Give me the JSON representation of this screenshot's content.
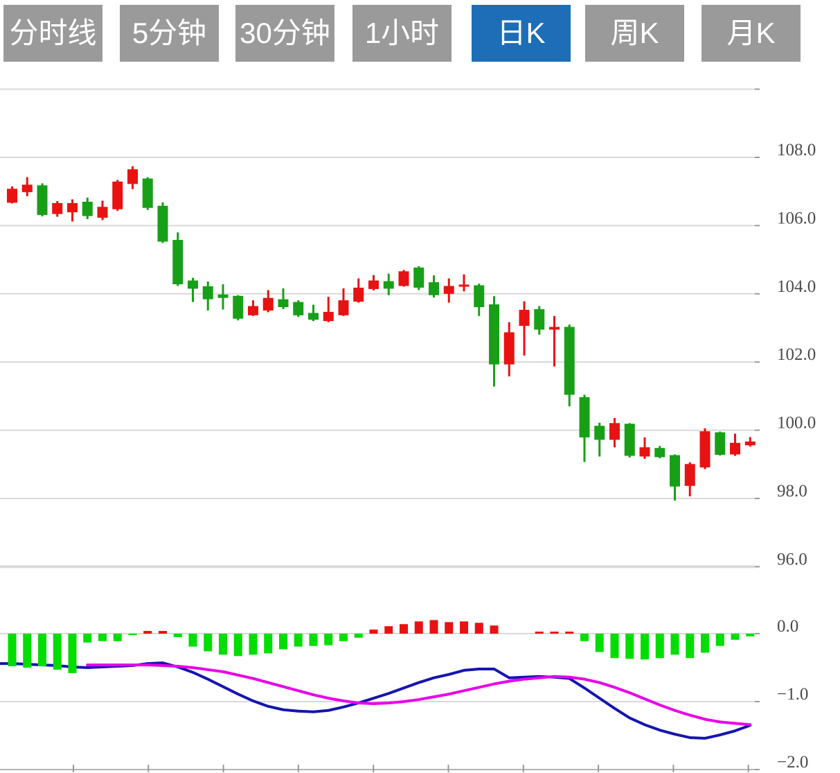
{
  "toolbar": {
    "buttons": [
      {
        "label": "分时线",
        "active": false
      },
      {
        "label": "5分钟",
        "active": false
      },
      {
        "label": "30分钟",
        "active": false
      },
      {
        "label": "1小时",
        "active": false
      },
      {
        "label": "日K",
        "active": true
      },
      {
        "label": "周K",
        "active": false
      },
      {
        "label": "月K",
        "active": false
      }
    ],
    "active_color": "#1d6eb7",
    "inactive_color": "#9a9a9a",
    "text_color": "#ffffff"
  },
  "chart_data": {
    "type": "candlestick",
    "title": "",
    "selected_timeframe": "日K",
    "legend": "none",
    "grid": true,
    "price_axis": {
      "position": "right",
      "tick_labels": [
        "108.0",
        "106.0",
        "104.0",
        "102.0",
        "100.0",
        "98.0",
        "96.0"
      ],
      "tick_values": [
        108,
        106,
        104,
        102,
        100,
        98,
        96
      ],
      "top_gridline_value": 110,
      "range": [
        96,
        110
      ]
    },
    "macd_axis": {
      "tick_labels": [
        "0.0",
        "−1.0",
        "−2.0"
      ],
      "tick_values": [
        0,
        -1,
        -2
      ],
      "range": [
        -2,
        0.25
      ]
    },
    "candles_ohlc_note": "each candle is [open, high, low, close]; red = up, green = down (CN convention)",
    "candles": [
      [
        106.67,
        107.15,
        106.65,
        107.08
      ],
      [
        106.98,
        107.42,
        106.86,
        107.2
      ],
      [
        107.18,
        107.24,
        106.27,
        106.31
      ],
      [
        106.34,
        106.72,
        106.26,
        106.66
      ],
      [
        106.39,
        106.77,
        106.12,
        106.66
      ],
      [
        106.7,
        106.82,
        106.19,
        106.28
      ],
      [
        106.23,
        106.73,
        106.16,
        106.55
      ],
      [
        106.48,
        107.34,
        106.43,
        107.29
      ],
      [
        107.22,
        107.74,
        107.07,
        107.65
      ],
      [
        107.38,
        107.42,
        106.46,
        106.52
      ],
      [
        106.58,
        106.68,
        105.49,
        105.53
      ],
      [
        105.58,
        105.8,
        104.23,
        104.28
      ],
      [
        104.39,
        104.47,
        103.76,
        104.15
      ],
      [
        104.22,
        104.36,
        103.51,
        103.84
      ],
      [
        103.98,
        104.28,
        103.54,
        103.88
      ],
      [
        103.94,
        103.96,
        103.22,
        103.27
      ],
      [
        103.37,
        103.81,
        103.35,
        103.64
      ],
      [
        103.51,
        104.11,
        103.46,
        103.88
      ],
      [
        103.84,
        104.16,
        103.55,
        103.61
      ],
      [
        103.76,
        103.81,
        103.32,
        103.37
      ],
      [
        103.44,
        103.68,
        103.2,
        103.24
      ],
      [
        103.2,
        103.91,
        103.17,
        103.47
      ],
      [
        103.37,
        104.16,
        103.35,
        103.81
      ],
      [
        103.77,
        104.45,
        103.74,
        104.18
      ],
      [
        104.14,
        104.55,
        104.1,
        104.39
      ],
      [
        104.37,
        104.59,
        103.96,
        104.15
      ],
      [
        104.23,
        104.7,
        104.21,
        104.66
      ],
      [
        104.77,
        104.81,
        104.11,
        104.18
      ],
      [
        104.34,
        104.54,
        103.89,
        103.96
      ],
      [
        104.0,
        104.45,
        103.74,
        104.23
      ],
      [
        104.21,
        104.57,
        104.07,
        104.27
      ],
      [
        104.25,
        104.3,
        103.35,
        103.61
      ],
      [
        103.69,
        103.93,
        101.28,
        101.93
      ],
      [
        101.93,
        103.17,
        101.58,
        102.87
      ],
      [
        103.06,
        103.78,
        102.19,
        103.53
      ],
      [
        103.55,
        103.64,
        102.8,
        102.95
      ],
      [
        102.95,
        103.35,
        101.87,
        103.03
      ],
      [
        103.03,
        103.1,
        100.7,
        101.04
      ],
      [
        100.97,
        101.04,
        99.07,
        99.79
      ],
      [
        100.13,
        100.22,
        99.23,
        99.72
      ],
      [
        99.72,
        100.36,
        99.5,
        100.21
      ],
      [
        100.19,
        100.21,
        99.2,
        99.25
      ],
      [
        99.23,
        99.79,
        99.16,
        99.5
      ],
      [
        99.48,
        99.54,
        99.18,
        99.21
      ],
      [
        99.27,
        99.29,
        97.94,
        98.35
      ],
      [
        98.37,
        99.06,
        98.06,
        99.01
      ],
      [
        98.91,
        100.06,
        98.86,
        99.97
      ],
      [
        99.94,
        99.96,
        99.26,
        99.28
      ],
      [
        99.29,
        99.9,
        99.25,
        99.63
      ],
      [
        99.56,
        99.8,
        99.52,
        99.67
      ]
    ],
    "macd": {
      "histogram": [
        -0.48,
        -0.5,
        -0.48,
        -0.53,
        -0.58,
        -0.13,
        -0.11,
        -0.11,
        -0.01,
        0.04,
        0.04,
        -0.05,
        -0.19,
        -0.26,
        -0.31,
        -0.33,
        -0.31,
        -0.29,
        -0.23,
        -0.19,
        -0.18,
        -0.17,
        -0.11,
        -0.06,
        0.06,
        0.11,
        0.14,
        0.18,
        0.2,
        0.17,
        0.18,
        0.16,
        0.12,
        0,
        0,
        0.03,
        0.03,
        0.03,
        -0.11,
        -0.27,
        -0.36,
        -0.37,
        -0.38,
        -0.36,
        -0.31,
        -0.36,
        -0.28,
        -0.18,
        -0.09,
        -0.04
      ],
      "dif": [
        -0.44,
        -0.45,
        -0.46,
        -0.47,
        -0.49,
        -0.5,
        -0.49,
        -0.48,
        -0.47,
        -0.44,
        -0.43,
        -0.49,
        -0.57,
        -0.67,
        -0.78,
        -0.89,
        -0.99,
        -1.07,
        -1.12,
        -1.14,
        -1.15,
        -1.13,
        -1.08,
        -1.02,
        -0.95,
        -0.88,
        -0.8,
        -0.72,
        -0.65,
        -0.6,
        -0.54,
        -0.52,
        -0.52,
        -0.65,
        -0.64,
        -0.63,
        -0.64,
        -0.66,
        -0.8,
        -0.95,
        -1.1,
        -1.24,
        -1.34,
        -1.42,
        -1.48,
        -1.53,
        -1.54,
        -1.49,
        -1.43,
        -1.35
      ],
      "dea": [
        null,
        null,
        null,
        null,
        null,
        -0.46,
        -0.46,
        -0.46,
        -0.46,
        -0.46,
        -0.47,
        -0.48,
        -0.5,
        -0.53,
        -0.56,
        -0.61,
        -0.66,
        -0.72,
        -0.78,
        -0.84,
        -0.9,
        -0.95,
        -0.99,
        -1.02,
        -1.03,
        -1.02,
        -1.0,
        -0.97,
        -0.93,
        -0.89,
        -0.84,
        -0.79,
        -0.74,
        -0.7,
        -0.67,
        -0.65,
        -0.63,
        -0.64,
        -0.67,
        -0.72,
        -0.79,
        -0.87,
        -0.96,
        -1.05,
        -1.13,
        -1.2,
        -1.26,
        -1.3,
        -1.32,
        -1.34
      ]
    },
    "colors": {
      "up": "#e81212",
      "down": "#17a017",
      "hist_up": "#e81212",
      "hist_down": "#00dd00",
      "dif_line": "#1515b0",
      "dea_line": "#e800e8",
      "grid": "#d9d9d9",
      "separator": "#d8d8d8",
      "axis_line": "#b3b3b3",
      "tick": "#999999",
      "axis_text": "#4a4a4a"
    }
  }
}
